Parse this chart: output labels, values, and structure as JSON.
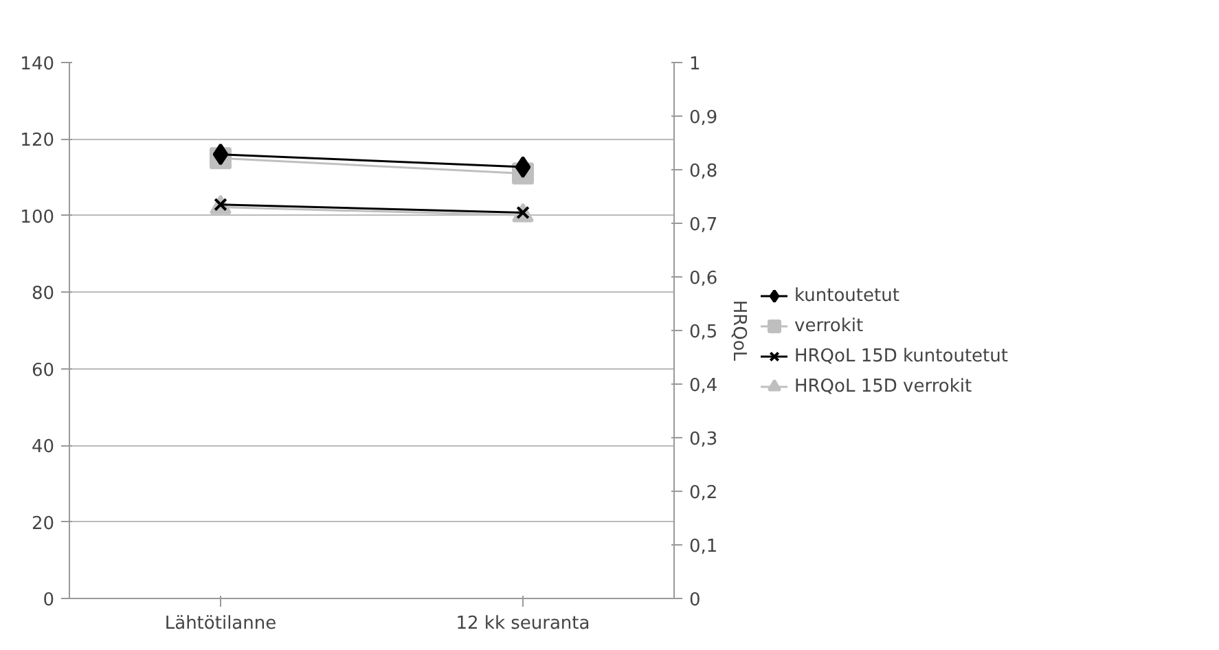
{
  "chart_data": {
    "type": "line",
    "y2label": "HRQoL",
    "categories": [
      "Lähtötilanne",
      "12 kk seuranta"
    ],
    "ylim": [
      0,
      140
    ],
    "yticks": [
      0,
      20,
      40,
      60,
      80,
      100,
      120,
      140
    ],
    "y2lim": [
      0,
      1
    ],
    "y2ticks": [
      {
        "value": 0,
        "label": "0"
      },
      {
        "value": 0.1,
        "label": "0,1"
      },
      {
        "value": 0.2,
        "label": "0,2"
      },
      {
        "value": 0.3,
        "label": "0,3"
      },
      {
        "value": 0.4,
        "label": "0,4"
      },
      {
        "value": 0.5,
        "label": "0,5"
      },
      {
        "value": 0.6,
        "label": "0,6"
      },
      {
        "value": 0.7,
        "label": "0,7"
      },
      {
        "value": 0.8,
        "label": "0,8"
      },
      {
        "value": 0.9,
        "label": "0,9"
      },
      {
        "value": 1,
        "label": "1"
      }
    ],
    "grid": "y",
    "legend": "right",
    "series": [
      {
        "name": "kuntoutetut",
        "color": "#000000",
        "marker": "diamond",
        "values": [
          116,
          112.7
        ]
      },
      {
        "name": "verrokit",
        "color": "#bfbfbf",
        "marker": "square",
        "values": [
          115,
          111
        ]
      },
      {
        "name": "HRQoL 15D kuntoutetut",
        "color": "#000000",
        "marker": "cross",
        "axis": "y2",
        "values": [
          0.735,
          0.72
        ]
      },
      {
        "name": "HRQoL 15D verrokit",
        "color": "#bfbfbf",
        "marker": "triangle",
        "axis": "y2",
        "values": [
          0.73,
          0.715
        ]
      }
    ]
  }
}
